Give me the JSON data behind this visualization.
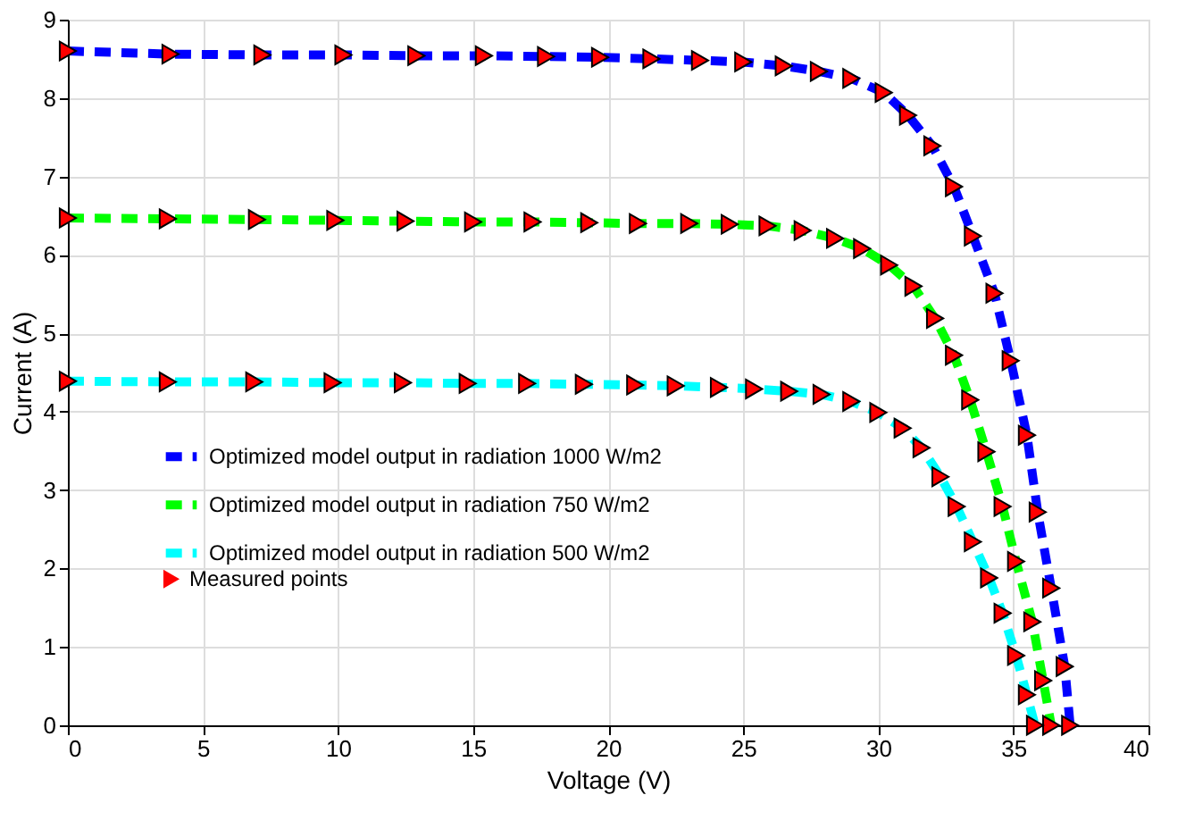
{
  "chart_data": {
    "type": "line",
    "xlabel": "Voltage (V)",
    "ylabel": "Current (A)",
    "xlim": [
      0,
      40
    ],
    "ylim": [
      0,
      9
    ],
    "xticks": [
      0,
      5,
      10,
      15,
      20,
      25,
      30,
      35,
      40
    ],
    "yticks": [
      0,
      1,
      2,
      3,
      4,
      5,
      6,
      7,
      8,
      9
    ],
    "grid": true,
    "legend": "bottom left",
    "line_style": "dashed",
    "series": [
      {
        "name": "Optimized model output in radiation 1000 W/m2",
        "color": "#0000ff",
        "x": [
          0,
          3.8,
          7.2,
          10.2,
          12.9,
          15.4,
          17.7,
          19.7,
          21.6,
          23.4,
          25.0,
          26.5,
          27.8,
          29.0,
          30.2,
          31.1,
          32.0,
          32.8,
          33.5,
          34.3,
          34.9,
          35.5,
          35.9,
          36.4,
          36.9,
          37.1
        ],
        "values": [
          8.6,
          8.56,
          8.55,
          8.55,
          8.54,
          8.54,
          8.53,
          8.52,
          8.5,
          8.48,
          8.46,
          8.41,
          8.34,
          8.25,
          8.07,
          7.78,
          7.39,
          6.87,
          6.24,
          5.51,
          4.65,
          3.7,
          2.72,
          1.75,
          0.75,
          0
        ]
      },
      {
        "name": "Optimized model output in radiation 750 W/m2",
        "color": "#00ff00",
        "x": [
          0,
          3.7,
          7.0,
          9.9,
          12.5,
          15.0,
          17.2,
          19.3,
          21.1,
          23.0,
          24.5,
          25.9,
          27.2,
          28.4,
          29.4,
          30.4,
          31.3,
          32.1,
          32.8,
          33.4,
          34.0,
          34.6,
          35.1,
          35.7,
          36.1,
          36.4
        ],
        "values": [
          6.47,
          6.46,
          6.45,
          6.44,
          6.43,
          6.42,
          6.42,
          6.41,
          6.4,
          6.4,
          6.39,
          6.37,
          6.31,
          6.21,
          6.08,
          5.87,
          5.6,
          5.19,
          4.72,
          4.15,
          3.49,
          2.79,
          2.09,
          1.32,
          0.57,
          0
        ]
      },
      {
        "name": "Optimized model output in radiation 500 W/m2",
        "color": "#00ffff",
        "x": [
          0,
          3.7,
          6.9,
          9.8,
          12.4,
          14.8,
          17.0,
          19.1,
          21.0,
          22.5,
          24.1,
          25.4,
          26.7,
          27.9,
          29.0,
          30.0,
          30.9,
          31.6,
          32.3,
          32.9,
          33.5,
          34.1,
          34.6,
          35.1,
          35.5,
          35.8
        ],
        "values": [
          4.39,
          4.38,
          4.38,
          4.37,
          4.37,
          4.36,
          4.36,
          4.35,
          4.34,
          4.33,
          4.31,
          4.29,
          4.26,
          4.22,
          4.13,
          3.99,
          3.79,
          3.54,
          3.17,
          2.79,
          2.34,
          1.88,
          1.43,
          0.89,
          0.39,
          0
        ]
      },
      {
        "name": "Measured points",
        "color": "#ff0000",
        "type": "scatter",
        "marker": "triangle",
        "x": [
          0,
          3.8,
          7.2,
          10.2,
          12.9,
          15.4,
          17.7,
          19.7,
          21.6,
          23.4,
          25.0,
          26.5,
          27.8,
          29.0,
          30.2,
          31.1,
          32.0,
          32.8,
          33.5,
          34.3,
          34.9,
          35.5,
          35.9,
          36.4,
          36.9,
          37.1,
          0,
          3.7,
          7.0,
          9.9,
          12.5,
          15.0,
          17.2,
          19.3,
          21.1,
          23.0,
          24.5,
          25.9,
          27.2,
          28.4,
          29.4,
          30.4,
          31.3,
          32.1,
          32.8,
          33.4,
          34.0,
          34.6,
          35.1,
          35.7,
          36.1,
          36.4,
          0,
          3.7,
          6.9,
          9.8,
          12.4,
          14.8,
          17.0,
          19.1,
          21.0,
          22.5,
          24.1,
          25.4,
          26.7,
          27.9,
          29.0,
          30.0,
          30.9,
          31.6,
          32.3,
          32.9,
          33.5,
          34.1,
          34.6,
          35.1,
          35.5,
          35.8
        ],
        "values": [
          8.6,
          8.56,
          8.55,
          8.55,
          8.54,
          8.54,
          8.53,
          8.52,
          8.5,
          8.48,
          8.46,
          8.41,
          8.34,
          8.25,
          8.07,
          7.78,
          7.39,
          6.87,
          6.24,
          5.51,
          4.65,
          3.7,
          2.72,
          1.75,
          0.75,
          0,
          6.47,
          6.46,
          6.45,
          6.44,
          6.43,
          6.42,
          6.42,
          6.41,
          6.4,
          6.4,
          6.39,
          6.37,
          6.31,
          6.21,
          6.08,
          5.87,
          5.6,
          5.19,
          4.72,
          4.15,
          3.49,
          2.79,
          2.09,
          1.32,
          0.57,
          0,
          4.39,
          4.38,
          4.38,
          4.37,
          4.37,
          4.36,
          4.36,
          4.35,
          4.34,
          4.33,
          4.31,
          4.29,
          4.26,
          4.22,
          4.13,
          3.99,
          3.79,
          3.54,
          3.17,
          2.79,
          2.34,
          1.88,
          1.43,
          0.89,
          0.39,
          0
        ]
      }
    ]
  }
}
